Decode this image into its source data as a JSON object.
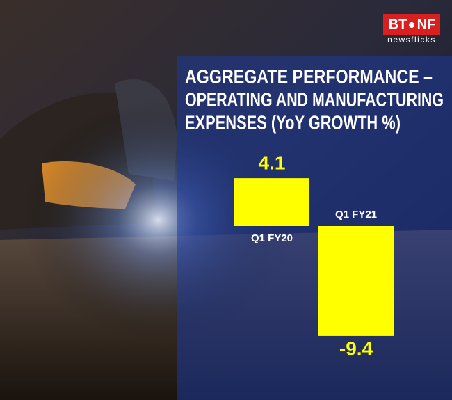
{
  "logo": {
    "left": "BT",
    "right": "NF",
    "tagline": "newsflicks"
  },
  "chart_data": {
    "type": "bar",
    "title": [
      "AGGREGATE PERFORMANCE –",
      "OPERATING AND MANUFACTURING",
      "EXPENSES (YoY GROWTH %)"
    ],
    "categories": [
      "Q1 FY20",
      "Q1 FY21"
    ],
    "values": [
      4.1,
      -9.4
    ],
    "color": "#ffff00"
  }
}
